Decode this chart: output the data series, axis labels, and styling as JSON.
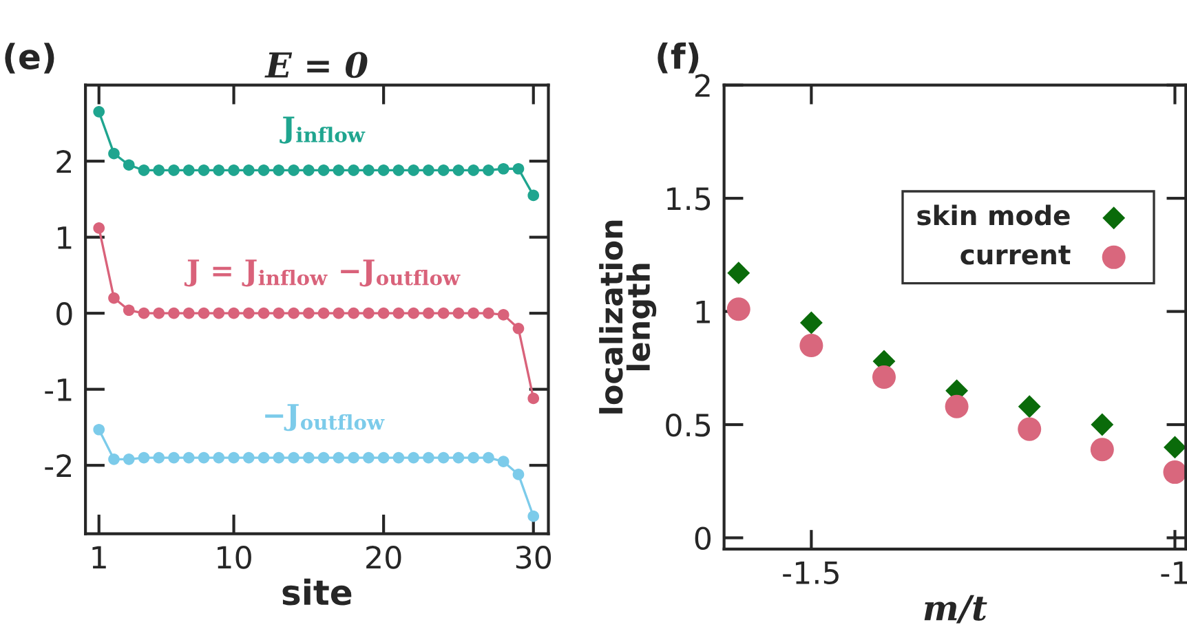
{
  "chart_data": [
    {
      "type": "line",
      "title": "E = 0",
      "xlabel": "site",
      "annotations": [
        "(e)"
      ],
      "x": [
        1,
        2,
        3,
        4,
        5,
        6,
        7,
        8,
        9,
        10,
        11,
        12,
        13,
        14,
        15,
        16,
        17,
        18,
        19,
        20,
        21,
        22,
        23,
        24,
        25,
        26,
        27,
        28,
        29,
        30
      ],
      "series": [
        {
          "name": "J$_{inflow}$",
          "color": "#1fa58f",
          "values": [
            2.65,
            2.1,
            1.95,
            1.88,
            1.88,
            1.88,
            1.88,
            1.88,
            1.88,
            1.88,
            1.88,
            1.88,
            1.88,
            1.88,
            1.88,
            1.88,
            1.88,
            1.88,
            1.88,
            1.88,
            1.88,
            1.88,
            1.88,
            1.88,
            1.88,
            1.88,
            1.88,
            1.9,
            1.9,
            1.55
          ]
        },
        {
          "name": "J = J$_{inflow}$ −J$_{outflow}$",
          "color": "#d9627a",
          "values": [
            1.12,
            0.2,
            0.04,
            0,
            0,
            0,
            0,
            0,
            0,
            0,
            0,
            0,
            0,
            0,
            0,
            0,
            0,
            0,
            0,
            0,
            0,
            0,
            0,
            0,
            0,
            0,
            0,
            -0.02,
            -0.2,
            -1.12
          ]
        },
        {
          "name": "−J$_{outflow}$",
          "color": "#7ccbea",
          "values": [
            -1.53,
            -1.92,
            -1.92,
            -1.9,
            -1.9,
            -1.9,
            -1.9,
            -1.9,
            -1.9,
            -1.9,
            -1.9,
            -1.9,
            -1.9,
            -1.9,
            -1.9,
            -1.9,
            -1.9,
            -1.9,
            -1.9,
            -1.9,
            -1.9,
            -1.9,
            -1.9,
            -1.9,
            -1.9,
            -1.9,
            -1.9,
            -1.95,
            -2.12,
            -2.67
          ]
        }
      ],
      "xlim": [
        0.1,
        31
      ],
      "xticks": [
        1,
        10,
        20,
        30
      ],
      "ylim": [
        -2.9,
        3.0
      ],
      "yticks": [
        -2,
        -1,
        0,
        1,
        2
      ],
      "marker": "circle",
      "line_style": "solid",
      "grid": false,
      "legend": false
    },
    {
      "type": "scatter",
      "xlabel": "m/t",
      "ylabel": "localization\nlength",
      "annotations": [
        "(f)"
      ],
      "x": [
        -1.6,
        -1.5,
        -1.4,
        -1.3,
        -1.2,
        -1.1,
        -1.0
      ],
      "series": [
        {
          "name": "skin mode",
          "color": "#0a6b0a",
          "marker": "diamond",
          "values": [
            1.17,
            0.95,
            0.78,
            0.65,
            0.58,
            0.5,
            0.4
          ]
        },
        {
          "name": "current",
          "color": "#d9677d",
          "marker": "circle",
          "values": [
            1.01,
            0.85,
            0.71,
            0.58,
            0.48,
            0.39,
            0.29
          ]
        }
      ],
      "xlim": [
        -1.62,
        -0.985
      ],
      "xticks": [
        -1.5,
        -1
      ],
      "ylim": [
        -0.05,
        2
      ],
      "yticks": [
        0,
        0.5,
        1,
        1.5,
        2
      ],
      "grid": false,
      "legend": "top right"
    }
  ]
}
